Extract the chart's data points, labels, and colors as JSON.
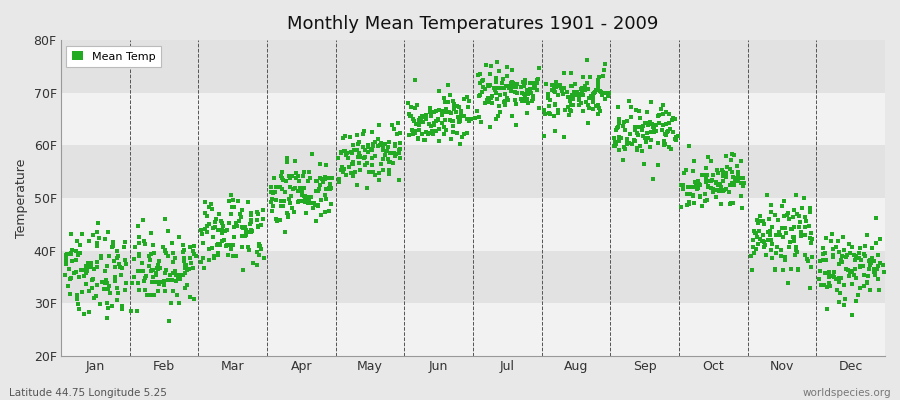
{
  "title": "Monthly Mean Temperatures 1901 - 2009",
  "ylabel": "Temperature",
  "subtitle_left": "Latitude 44.75 Longitude 5.25",
  "subtitle_right": "worldspecies.org",
  "legend_label": "Mean Temp",
  "ylim": [
    20,
    80
  ],
  "ytick_labels": [
    "20F",
    "30F",
    "40F",
    "50F",
    "60F",
    "70F",
    "80F"
  ],
  "ytick_values": [
    20,
    30,
    40,
    50,
    60,
    70,
    80
  ],
  "months": [
    "Jan",
    "Feb",
    "Mar",
    "Apr",
    "May",
    "Jun",
    "Jul",
    "Aug",
    "Sep",
    "Oct",
    "Nov",
    "Dec"
  ],
  "n_years": 109,
  "year_start": 1901,
  "year_end": 2009,
  "marker_color": "#22aa22",
  "marker_size": 3,
  "background_color": "#e8e8e8",
  "plot_bg_light": "#f2f2f2",
  "plot_bg_dark": "#e2e2e2",
  "mean_temps_C": {
    "Jan": 2.0,
    "Feb": 2.5,
    "Mar": 6.5,
    "Apr": 10.5,
    "May": 14.5,
    "Jun": 18.0,
    "Jul": 21.0,
    "Aug": 20.5,
    "Sep": 16.5,
    "Oct": 11.5,
    "Nov": 5.5,
    "Dec": 2.5
  },
  "std_temps_C": {
    "Jan": 2.2,
    "Feb": 2.2,
    "Mar": 1.8,
    "Apr": 1.5,
    "May": 1.5,
    "Jun": 1.4,
    "Jul": 1.4,
    "Aug": 1.4,
    "Sep": 1.5,
    "Oct": 1.5,
    "Nov": 1.8,
    "Dec": 2.0
  }
}
